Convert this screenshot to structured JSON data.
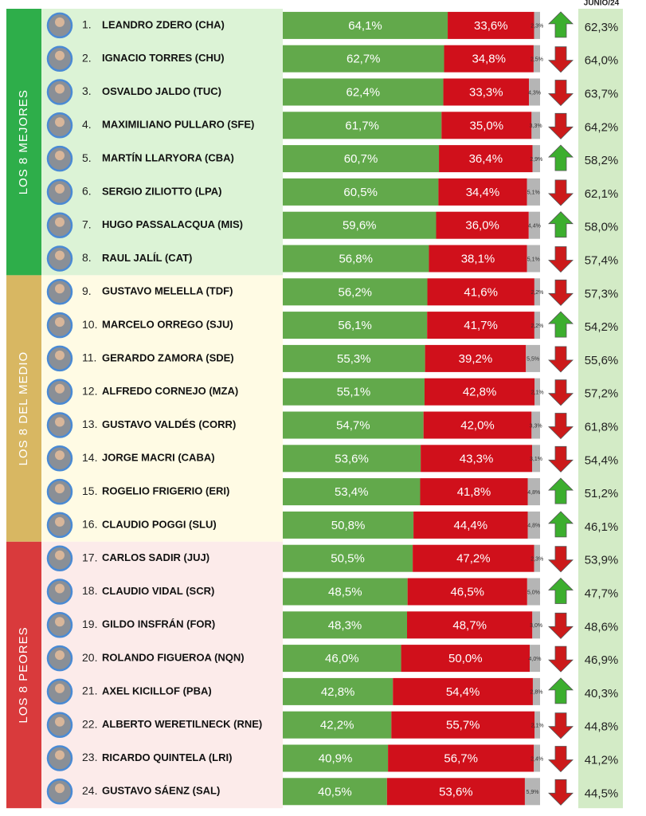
{
  "chart_data": {
    "type": "bar",
    "header": "JUNIO/24",
    "xlim": [
      0,
      100
    ],
    "groups": [
      {
        "label": "LOS 8 MEJORES",
        "color": "#2eae4a",
        "background": "#dcf3d6"
      },
      {
        "label": "LOS 8 DEL MEDIO",
        "color": "#d8b762",
        "background": "#fffbe4"
      },
      {
        "label": "LOS 8 PEORES",
        "color": "#d93a3c",
        "background": "#fcebea"
      }
    ],
    "row_group": [
      0,
      0,
      0,
      0,
      0,
      0,
      0,
      0,
      1,
      1,
      1,
      1,
      1,
      1,
      1,
      1,
      2,
      2,
      2,
      2,
      2,
      2,
      2,
      2
    ],
    "ranks": [
      "1.",
      "2.",
      "3.",
      "4.",
      "5.",
      "6.",
      "7.",
      "8.",
      "9.",
      "10.",
      "11.",
      "12.",
      "13.",
      "14.",
      "15.",
      "16.",
      "17.",
      "18.",
      "19.",
      "20.",
      "21.",
      "22.",
      "23.",
      "24."
    ],
    "categories": [
      "LEANDRO ZDERO (CHA)",
      "IGNACIO TORRES (CHU)",
      "OSVALDO JALDO (TUC)",
      "MAXIMILIANO PULLARO (SFE)",
      "MARTÍN LLARYORA (CBA)",
      "SERGIO ZILIOTTO (LPA)",
      "HUGO PASSALACQUA (MIS)",
      "RAUL JALÍL (CAT)",
      "GUSTAVO MELELLA (TDF)",
      "MARCELO ORREGO (SJU)",
      "GERARDO ZAMORA (SDE)",
      "ALFREDO CORNEJO (MZA)",
      "GUSTAVO VALDÉS (CORR)",
      "JORGE MACRI (CABA)",
      "ROGELIO FRIGERIO (ERI)",
      "CLAUDIO POGGI (SLU)",
      "CARLOS SADIR (JUJ)",
      "CLAUDIO VIDAL (SCR)",
      "GILDO INSFRÁN (FOR)",
      "ROLANDO FIGUEROA (NQN)",
      "AXEL KICILLOF (PBA)",
      "ALBERTO WERETILNECK (RNE)",
      "RICARDO QUINTELA (LRI)",
      "GUSTAVO SÁENZ (SAL)"
    ],
    "series": [
      {
        "color": "#62a94b",
        "label_color": "#ffffff",
        "values": [
          64.1,
          62.7,
          62.4,
          61.7,
          60.7,
          60.5,
          59.6,
          56.8,
          56.2,
          56.1,
          55.3,
          55.1,
          54.7,
          53.6,
          53.4,
          50.8,
          50.5,
          48.5,
          48.3,
          46.0,
          42.8,
          42.2,
          40.9,
          40.5
        ],
        "value_labels": [
          "64,1%",
          "62,7%",
          "62,4%",
          "61,7%",
          "60,7%",
          "60,5%",
          "59,6%",
          "56,8%",
          "56,2%",
          "56,1%",
          "55,3%",
          "55,1%",
          "54,7%",
          "53,6%",
          "53,4%",
          "50,8%",
          "50,5%",
          "48,5%",
          "48,3%",
          "46,0%",
          "42,8%",
          "42,2%",
          "40,9%",
          "40,5%"
        ]
      },
      {
        "color": "#d0101b",
        "label_color": "#ffffff",
        "values": [
          33.6,
          34.8,
          33.3,
          35.0,
          36.4,
          34.4,
          36.0,
          38.1,
          41.6,
          41.7,
          39.2,
          42.8,
          42.0,
          43.3,
          41.8,
          44.4,
          47.2,
          46.5,
          48.7,
          50.0,
          54.4,
          55.7,
          56.7,
          53.6
        ],
        "value_labels": [
          "33,6%",
          "34,8%",
          "33,3%",
          "35,0%",
          "36,4%",
          "34,4%",
          "36,0%",
          "38,1%",
          "41,6%",
          "41,7%",
          "39,2%",
          "42,8%",
          "42,0%",
          "43,3%",
          "41,8%",
          "44,4%",
          "47,2%",
          "46,5%",
          "48,7%",
          "50,0%",
          "54,4%",
          "55,7%",
          "56,7%",
          "53,6%"
        ]
      },
      {
        "color": "#b5b5b5",
        "label_color": "#333333",
        "values": [
          2.3,
          2.5,
          4.3,
          3.3,
          2.9,
          5.1,
          4.4,
          5.1,
          2.2,
          2.2,
          5.5,
          2.1,
          3.3,
          3.1,
          4.8,
          4.8,
          2.3,
          5.0,
          3.0,
          4.0,
          2.8,
          2.1,
          2.4,
          5.9
        ],
        "value_labels": [
          "2,3%",
          "2,5%",
          "4,3%",
          "3,3%",
          "2,9%",
          "5,1%",
          "4,4%",
          "5,1%",
          "2,2%",
          "2,2%",
          "5,5%",
          "2,1%",
          "3,3%",
          "3,1%",
          "4,8%",
          "4,8%",
          "2,3%",
          "5,0%",
          "3,0%",
          "4,0%",
          "2,8%",
          "2,1%",
          "2,4%",
          "5,9%"
        ]
      }
    ],
    "trend": [
      "up",
      "down",
      "down",
      "down",
      "up",
      "down",
      "up",
      "down",
      "down",
      "up",
      "down",
      "down",
      "down",
      "down",
      "up",
      "up",
      "down",
      "up",
      "down",
      "down",
      "up",
      "down",
      "down",
      "down"
    ],
    "trend_colors": {
      "up": "#3cae2e",
      "down": "#cc1a1a"
    },
    "previous_background": "#d3ebc6",
    "previous_values": [
      62.3,
      64.0,
      63.7,
      64.2,
      58.2,
      62.1,
      58.0,
      57.4,
      57.3,
      54.2,
      55.6,
      57.2,
      61.8,
      54.4,
      51.2,
      46.1,
      53.9,
      47.7,
      48.6,
      46.9,
      40.3,
      44.8,
      41.2,
      44.5
    ],
    "previous_labels": [
      "62,3%",
      "64,0%",
      "63,7%",
      "64,2%",
      "58,2%",
      "62,1%",
      "58,0%",
      "57,4%",
      "57,3%",
      "54,2%",
      "55,6%",
      "57,2%",
      "61,8%",
      "54,4%",
      "51,2%",
      "46,1%",
      "53,9%",
      "47,7%",
      "48,6%",
      "46,9%",
      "40,3%",
      "44,8%",
      "41,2%",
      "44,5%"
    ]
  }
}
